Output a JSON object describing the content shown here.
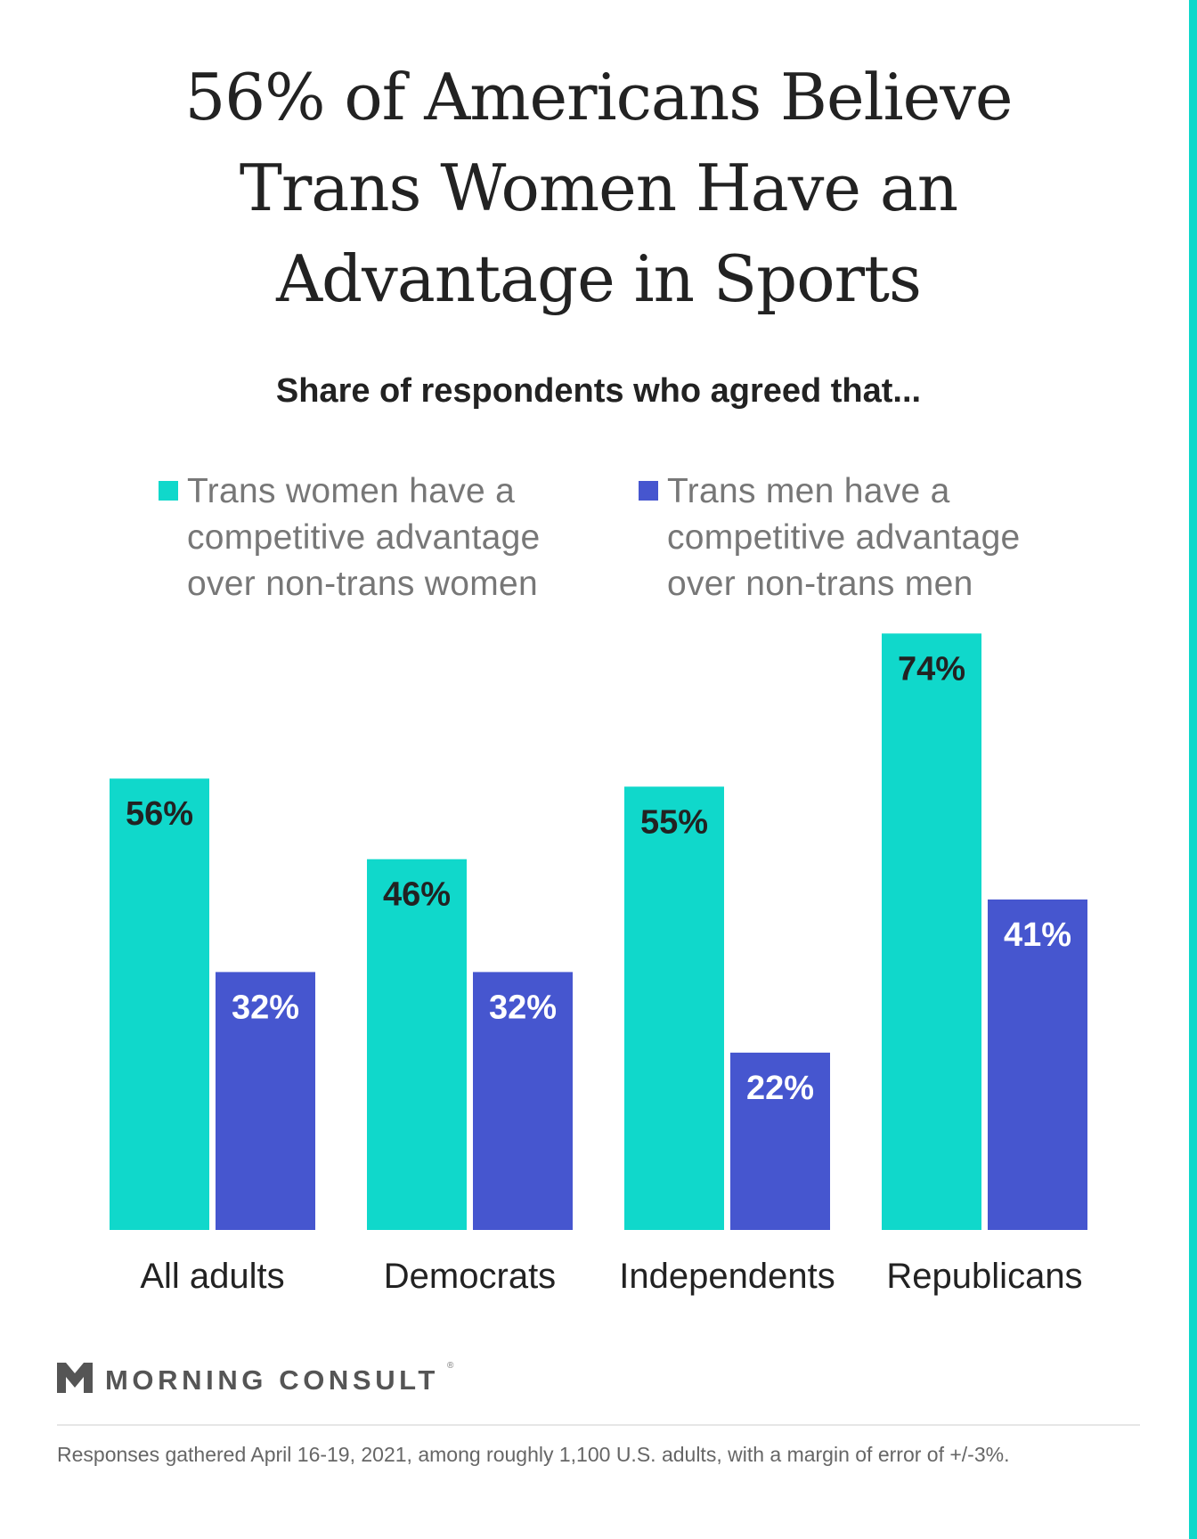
{
  "title_lines": [
    "56% of Americans Believe",
    "Trans Women Have an",
    "Advantage in Sports"
  ],
  "subtitle": "Share of respondents who agreed that...",
  "legend": [
    {
      "lines": [
        "Trans women have a",
        "competitive advantage",
        "over non-trans women"
      ],
      "color": "#10d8cb"
    },
    {
      "lines": [
        "Trans men have a",
        "competitive advantage",
        "over non-trans men"
      ],
      "color": "#4656cf"
    }
  ],
  "chart_data": {
    "type": "bar",
    "categories": [
      "All adults",
      "Democrats",
      "Independents",
      "Republicans"
    ],
    "series": [
      {
        "name": "Trans women have a competitive advantage over non-trans women",
        "values": [
          56,
          46,
          55,
          74
        ],
        "color": "#10d8cb",
        "label_color": "#222222"
      },
      {
        "name": "Trans men have a competitive advantage over non-trans men",
        "values": [
          32,
          32,
          22,
          41
        ],
        "color": "#4656cf",
        "label_color": "#ffffff"
      }
    ],
    "value_suffix": "%",
    "ylim": [
      0,
      100
    ],
    "grid": false,
    "legend_position": "top"
  },
  "brand": {
    "name": "MORNING CONSULT",
    "reg_mark": "®",
    "logo_icon": "chevron-m-logo-icon"
  },
  "footnote": "Responses gathered April 16-19, 2021, among roughly 1,100 U.S. adults, with a margin of error of +/-3%."
}
